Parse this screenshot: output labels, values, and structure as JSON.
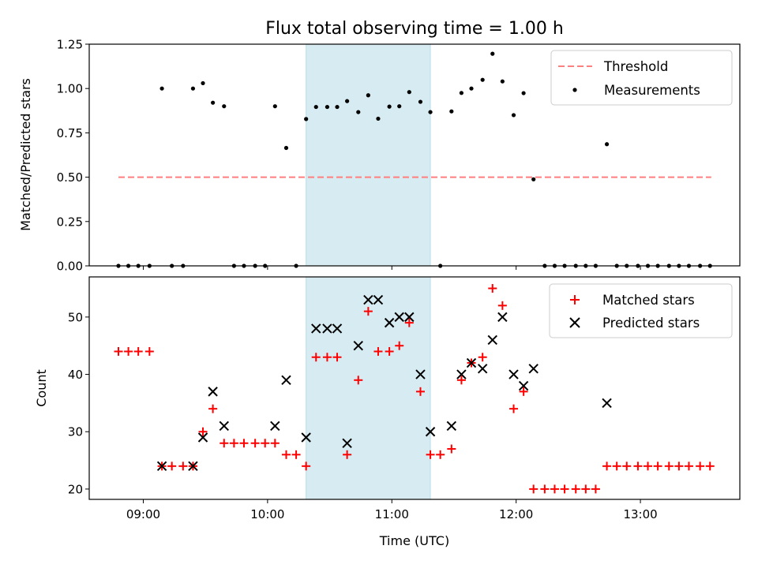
{
  "chart_data": [
    {
      "type": "scatter",
      "title": "Flux total observing time = 1.00 h",
      "xlabel": "",
      "ylabel": "Matched/Predicted stars",
      "xlim": [
        8.565,
        13.8
      ],
      "ylim": [
        0,
        1.25
      ],
      "yticks": [
        "0.00",
        "0.25",
        "0.50",
        "0.75",
        "1.00",
        "1.25"
      ],
      "shaded_span": [
        10.31,
        11.31
      ],
      "legend_position": "upper right",
      "series": [
        {
          "name": "Threshold",
          "style": "dashed-line",
          "color": "#ff7f7f",
          "x": [
            8.8,
            13.57
          ],
          "y": [
            0.5,
            0.5
          ]
        },
        {
          "name": "Measurements",
          "style": "dot",
          "color": "#000000",
          "x": [
            8.8,
            8.88,
            8.96,
            9.05,
            9.15,
            9.23,
            9.32,
            9.4,
            9.48,
            9.56,
            9.65,
            9.73,
            9.81,
            9.9,
            9.98,
            10.06,
            10.15,
            10.23,
            10.31,
            10.39,
            10.48,
            10.56,
            10.64,
            10.73,
            10.81,
            10.89,
            10.98,
            11.06,
            11.14,
            11.23,
            11.31,
            11.39,
            11.48,
            11.56,
            11.64,
            11.73,
            11.81,
            11.89,
            11.98,
            12.06,
            12.14,
            12.23,
            12.31,
            12.39,
            12.48,
            12.56,
            12.64,
            12.73,
            12.81,
            12.89,
            12.98,
            13.06,
            13.14,
            13.23,
            13.31,
            13.39,
            13.48,
            13.56
          ],
          "y": [
            0.0,
            0.0,
            0.0,
            0.0,
            1.0,
            0.0,
            0.0,
            1.0,
            1.03,
            0.92,
            0.9,
            0.0,
            0.0,
            0.0,
            0.0,
            0.9,
            0.665,
            0.0,
            0.828,
            0.896,
            0.896,
            0.896,
            0.929,
            0.867,
            0.962,
            0.83,
            0.898,
            0.9,
            0.98,
            0.925,
            0.867,
            0.0,
            0.871,
            0.975,
            1.0,
            1.049,
            1.196,
            1.04,
            0.85,
            0.974,
            0.488,
            0.0,
            0.0,
            0.0,
            0.0,
            0.0,
            0.0,
            0.686,
            0.0,
            0.0,
            0.0,
            0.0,
            0.0,
            0.0,
            0.0,
            0.0,
            0.0,
            0.0
          ]
        }
      ]
    },
    {
      "type": "scatter",
      "title": "",
      "xlabel": "Time (UTC)",
      "ylabel": "Count",
      "xlim": [
        8.565,
        13.8
      ],
      "ylim": [
        18.2,
        57.0
      ],
      "yticks": [
        "20",
        "30",
        "40",
        "50"
      ],
      "xticks": [
        {
          "value": 9,
          "label": "09:00"
        },
        {
          "value": 10,
          "label": "10:00"
        },
        {
          "value": 11,
          "label": "11:00"
        },
        {
          "value": 12,
          "label": "12:00"
        },
        {
          "value": 13,
          "label": "13:00"
        }
      ],
      "shaded_span": [
        10.31,
        11.31
      ],
      "legend_position": "upper right",
      "series": [
        {
          "name": "Matched stars",
          "style": "plus",
          "color": "#ff0000",
          "x": [
            8.8,
            8.88,
            8.96,
            9.05,
            9.15,
            9.23,
            9.32,
            9.4,
            9.48,
            9.56,
            9.65,
            9.73,
            9.81,
            9.9,
            9.98,
            10.06,
            10.15,
            10.23,
            10.31,
            10.39,
            10.48,
            10.56,
            10.64,
            10.73,
            10.81,
            10.89,
            10.98,
            11.06,
            11.14,
            11.23,
            11.31,
            11.39,
            11.48,
            11.56,
            11.64,
            11.73,
            11.81,
            11.89,
            11.98,
            12.06,
            12.14,
            12.23,
            12.31,
            12.39,
            12.48,
            12.56,
            12.64,
            12.73,
            12.81,
            12.89,
            12.98,
            13.06,
            13.14,
            13.23,
            13.31,
            13.39,
            13.48,
            13.56
          ],
          "y": [
            44,
            44,
            44,
            44,
            24,
            24,
            24,
            24,
            30,
            34,
            28,
            28,
            28,
            28,
            28,
            28,
            26,
            26,
            24,
            43,
            43,
            43,
            26,
            39,
            51,
            44,
            44,
            45,
            49,
            37,
            26,
            26,
            27,
            39,
            42,
            43,
            55,
            52,
            34,
            37,
            20,
            20,
            20,
            20,
            20,
            20,
            20,
            24,
            24,
            24,
            24,
            24,
            24,
            24,
            24,
            24,
            24,
            24
          ]
        },
        {
          "name": "Predicted stars",
          "style": "x",
          "color": "#000000",
          "x": [
            9.15,
            9.4,
            9.48,
            9.56,
            9.65,
            10.06,
            10.15,
            10.31,
            10.39,
            10.48,
            10.56,
            10.64,
            10.73,
            10.81,
            10.89,
            10.98,
            11.06,
            11.14,
            11.23,
            11.31,
            11.48,
            11.56,
            11.64,
            11.73,
            11.81,
            11.89,
            11.98,
            12.06,
            12.14,
            12.73
          ],
          "y": [
            24,
            24,
            29,
            37,
            31,
            31,
            39,
            29,
            48,
            48,
            48,
            28,
            45,
            53,
            53,
            49,
            50,
            50,
            40,
            30,
            31,
            40,
            42,
            41,
            46,
            50,
            40,
            38,
            41,
            35
          ]
        }
      ]
    }
  ]
}
